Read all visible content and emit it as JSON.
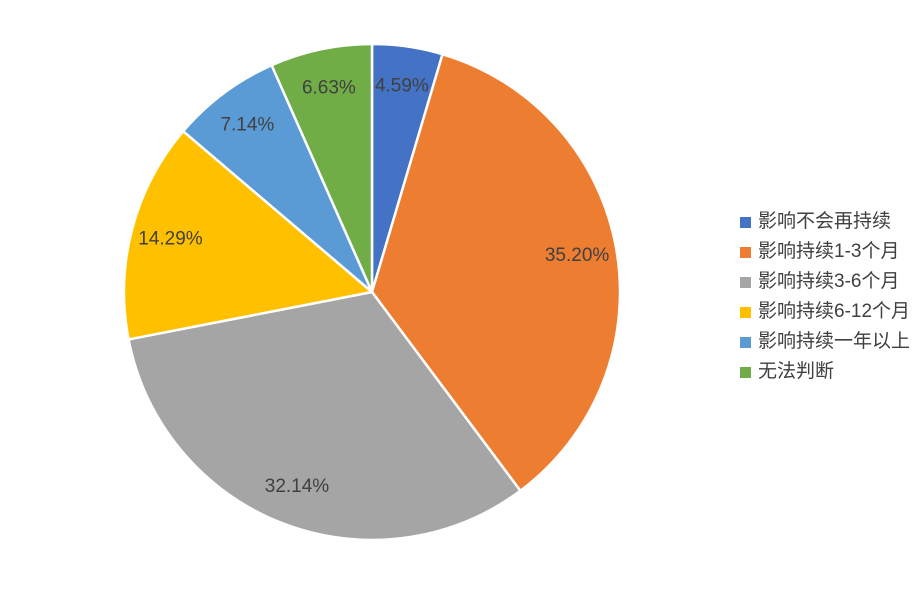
{
  "chart_data": {
    "type": "pie",
    "title": "",
    "legend_position": "right",
    "start_angle_deg": 0,
    "direction": "clockwise",
    "label_format": "percent",
    "text_color": "#404040",
    "background_color": "#ffffff",
    "slice_border_color": "#ffffff",
    "slices": [
      {
        "label": "影响不会再持续",
        "value": 4.59,
        "display": "4.59%",
        "color": "#4472C4"
      },
      {
        "label": "影响持续1-3个月",
        "value": 35.2,
        "display": "35.20%",
        "color": "#ED7D31"
      },
      {
        "label": "影响持续3-6个月",
        "value": 32.14,
        "display": "32.14%",
        "color": "#A5A5A5"
      },
      {
        "label": "影响持续6-12个月",
        "value": 14.29,
        "display": "14.29%",
        "color": "#FFC000"
      },
      {
        "label": "影响持续一年以上",
        "value": 7.14,
        "display": "7.14%",
        "color": "#5B9BD5"
      },
      {
        "label": "无法判断",
        "value": 6.63,
        "display": "6.63%",
        "color": "#70AD47"
      }
    ]
  }
}
